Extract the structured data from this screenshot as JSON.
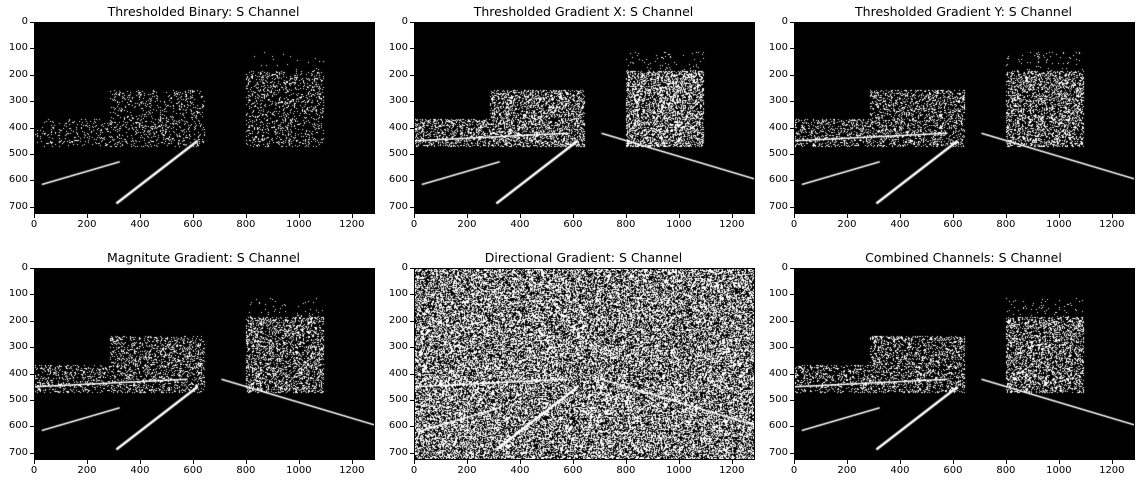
{
  "figure": {
    "panels": [
      {
        "title": "Thresholded Binary: S Channel",
        "style": "sparse"
      },
      {
        "title": "Thresholded Gradient X: S Channel",
        "style": "gradx"
      },
      {
        "title": "Thresholded Gradient Y: S Channel",
        "style": "grady"
      },
      {
        "title": "Magnitute Gradient: S Channel",
        "style": "mag"
      },
      {
        "title": "Directional Gradient: S Channel",
        "style": "dir"
      },
      {
        "title": "Combined Channels: S Channel",
        "style": "combined"
      }
    ],
    "x_ticks": [
      "0",
      "200",
      "400",
      "600",
      "800",
      "1000",
      "1200"
    ],
    "y_ticks": [
      "0",
      "100",
      "200",
      "300",
      "400",
      "500",
      "600",
      "700"
    ],
    "x_range": [
      0,
      1280
    ],
    "y_range": [
      0,
      720
    ]
  }
}
